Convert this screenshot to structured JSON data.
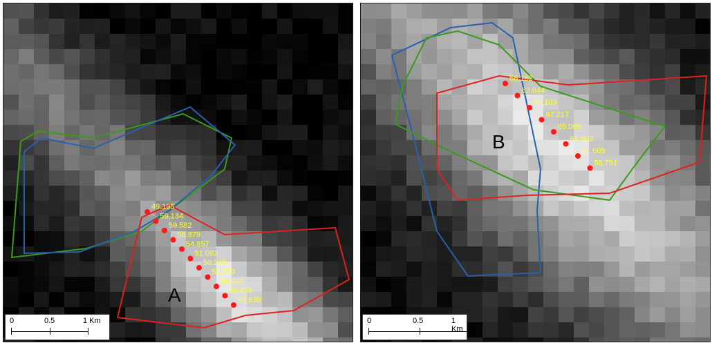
{
  "colors": {
    "red_outline": "#e02020",
    "green_outline": "#3a9a1a",
    "blue_outline": "#2a5fb0",
    "point": "#ff1a1a",
    "value_label": "#ffff33"
  },
  "panels": [
    {
      "id": "A",
      "area_label": "A",
      "scale": {
        "ticks": [
          "0",
          "0.5",
          "1 Km"
        ]
      },
      "points": [
        "49.195",
        "59.134",
        "59.582",
        "58.879",
        "54.857",
        "51.082",
        "50.249",
        "52.709",
        "56.917",
        "58.856",
        "56.639"
      ]
    },
    {
      "id": "B",
      "area_label": "B",
      "scale": {
        "ticks": [
          "0",
          "0.5",
          "1 Km"
        ]
      },
      "points": [
        "56.162",
        "62.044",
        "66.103",
        "67.217",
        "65.065",
        "62.503",
        "61.605",
        "58.751"
      ]
    }
  ]
}
